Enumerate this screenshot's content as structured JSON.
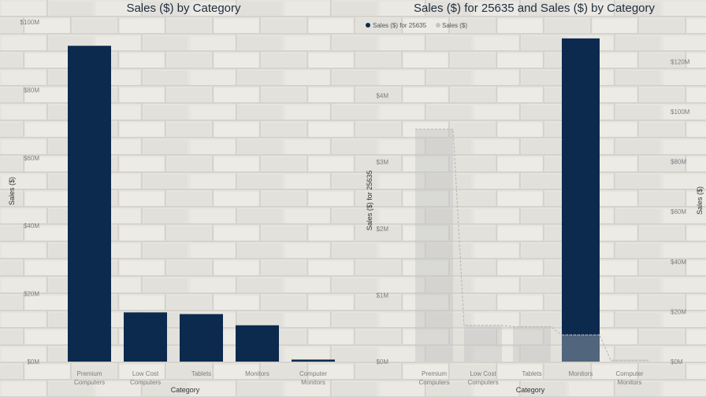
{
  "colors": {
    "primary": "#0c2a4e",
    "secondary": "#c4c4c4",
    "background": "#e4e2dd"
  },
  "chart_data": [
    {
      "type": "bar",
      "title": "Sales ($) by Category",
      "xlabel": "Category",
      "ylabel": "Sales ($)",
      "categories": [
        [
          "Premium",
          "Computers"
        ],
        [
          "Low Cost",
          "Computers"
        ],
        [
          "Tablets"
        ],
        [
          "Monitors"
        ],
        [
          "Computer",
          "Monitors"
        ]
      ],
      "values": [
        93000000,
        14500000,
        14000000,
        10700000,
        600000
      ],
      "ylim": [
        0,
        100000000
      ],
      "yticks": [
        {
          "value": 0,
          "label": "$0M"
        },
        {
          "value": 20000000,
          "label": "$20M"
        },
        {
          "value": 40000000,
          "label": "$40M"
        },
        {
          "value": 60000000,
          "label": "$60M"
        },
        {
          "value": 80000000,
          "label": "$80M"
        },
        {
          "value": 100000000,
          "label": "$100M"
        }
      ],
      "grid": false
    },
    {
      "type": "bar",
      "title": "Sales ($) for 25635 and Sales ($) by Category",
      "xlabel": "Category",
      "ylabel": "Sales ($) for 25635",
      "y2label": "Sales ($)",
      "categories": [
        [
          "Premium",
          "Computers"
        ],
        [
          "Low Cost",
          "Computers"
        ],
        [
          "Tablets"
        ],
        [
          "Monitors"
        ],
        [
          "Computer",
          "Monitors"
        ]
      ],
      "legend_position": "top-left",
      "series": [
        {
          "name": "Sales ($) for 25635",
          "axis": "left",
          "values": [
            0,
            0,
            0,
            4860000,
            0
          ]
        },
        {
          "name": "Sales ($)",
          "axis": "right",
          "values": [
            93000000,
            14500000,
            14000000,
            10700000,
            600000
          ]
        }
      ],
      "ylim": [
        0,
        5000000
      ],
      "y2lim": [
        0,
        133000000
      ],
      "yticks": [
        {
          "value": 0,
          "label": "$0M"
        },
        {
          "value": 1000000,
          "label": "$1M"
        },
        {
          "value": 2000000,
          "label": "$2M"
        },
        {
          "value": 3000000,
          "label": "$3M"
        },
        {
          "value": 4000000,
          "label": "$4M"
        }
      ],
      "y2ticks": [
        {
          "value": 0,
          "label": "$0M"
        },
        {
          "value": 20000000,
          "label": "$20M"
        },
        {
          "value": 40000000,
          "label": "$40M"
        },
        {
          "value": 60000000,
          "label": "$60M"
        },
        {
          "value": 80000000,
          "label": "$80M"
        },
        {
          "value": 100000000,
          "label": "$100M"
        },
        {
          "value": 120000000,
          "label": "$120M"
        }
      ],
      "grid": false
    }
  ]
}
